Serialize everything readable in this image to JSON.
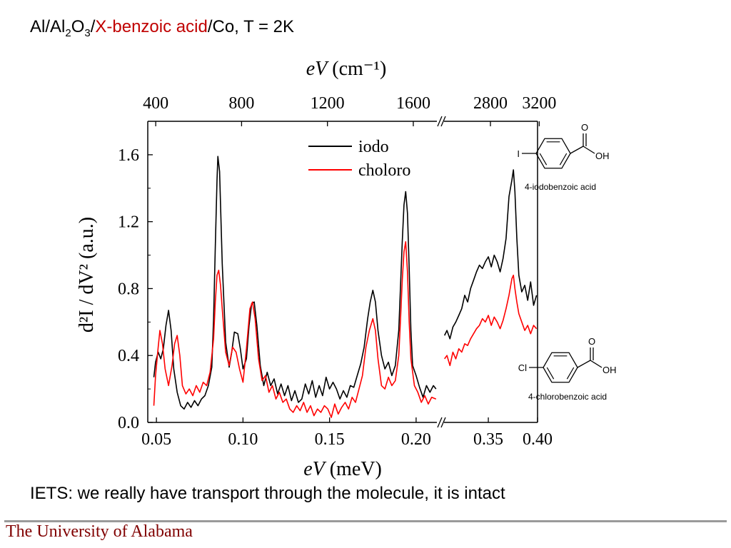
{
  "slide": {
    "title_prefix": "Al/Al",
    "title_sub1": "2",
    "title_mid": "O",
    "title_sub2": "3",
    "title_slash": "/",
    "title_red": "X-benzoic acid",
    "title_suffix": "/Co,  T = 2K",
    "caption": "IETS: we really have transport through the molecule, it is intact",
    "footer": "The University of Alabama",
    "accent_color": "#c00000",
    "footer_color": "#800000"
  },
  "chart_data": {
    "type": "line",
    "title": "",
    "xlabel_italic": "eV",
    "xlabel_rest": " (meV)",
    "ylabel": "d²I / dV² (a.u.)",
    "top_axis_label_italic": "eV",
    "top_axis_label_rest": " (cm⁻¹)",
    "ylim": [
      0.0,
      1.8
    ],
    "yticks": [
      "0.0",
      "0.4",
      "0.8",
      "1.2",
      "1.6"
    ],
    "left_segment": {
      "xlim": [
        0.045,
        0.212
      ],
      "xticks": [
        "0.05",
        "0.10",
        "0.15",
        "0.20"
      ]
    },
    "right_segment": {
      "xlim": [
        0.305,
        0.4
      ],
      "xticks": [
        "0.35",
        "0.40"
      ]
    },
    "top_ticks_left": [
      "400",
      "800",
      "1200",
      "1600"
    ],
    "top_ticks_right": [
      "2800",
      "3200"
    ],
    "legend_position": "top-center",
    "series": [
      {
        "name": "iodo",
        "color": "#000000",
        "left": [
          [
            0.0485,
            0.27
          ],
          [
            0.0495,
            0.36
          ],
          [
            0.051,
            0.42
          ],
          [
            0.0525,
            0.38
          ],
          [
            0.054,
            0.44
          ],
          [
            0.0555,
            0.58
          ],
          [
            0.057,
            0.67
          ],
          [
            0.0585,
            0.55
          ],
          [
            0.06,
            0.32
          ],
          [
            0.062,
            0.18
          ],
          [
            0.064,
            0.1
          ],
          [
            0.066,
            0.08
          ],
          [
            0.068,
            0.12
          ],
          [
            0.07,
            0.09
          ],
          [
            0.072,
            0.13
          ],
          [
            0.074,
            0.1
          ],
          [
            0.076,
            0.14
          ],
          [
            0.078,
            0.16
          ],
          [
            0.08,
            0.22
          ],
          [
            0.082,
            0.33
          ],
          [
            0.083,
            0.62
          ],
          [
            0.084,
            1.05
          ],
          [
            0.085,
            1.45
          ],
          [
            0.0855,
            1.59
          ],
          [
            0.0865,
            1.5
          ],
          [
            0.088,
            0.95
          ],
          [
            0.09,
            0.48
          ],
          [
            0.092,
            0.33
          ],
          [
            0.0935,
            0.42
          ],
          [
            0.095,
            0.54
          ],
          [
            0.097,
            0.53
          ],
          [
            0.0985,
            0.44
          ],
          [
            0.1,
            0.32
          ],
          [
            0.102,
            0.38
          ],
          [
            0.1035,
            0.58
          ],
          [
            0.105,
            0.71
          ],
          [
            0.1065,
            0.72
          ],
          [
            0.108,
            0.58
          ],
          [
            0.11,
            0.34
          ],
          [
            0.112,
            0.22
          ],
          [
            0.114,
            0.3
          ],
          [
            0.116,
            0.22
          ],
          [
            0.118,
            0.26
          ],
          [
            0.12,
            0.17
          ],
          [
            0.122,
            0.23
          ],
          [
            0.124,
            0.16
          ],
          [
            0.126,
            0.22
          ],
          [
            0.128,
            0.13
          ],
          [
            0.13,
            0.19
          ],
          [
            0.132,
            0.12
          ],
          [
            0.134,
            0.14
          ],
          [
            0.136,
            0.23
          ],
          [
            0.138,
            0.17
          ],
          [
            0.14,
            0.25
          ],
          [
            0.142,
            0.15
          ],
          [
            0.144,
            0.22
          ],
          [
            0.146,
            0.16
          ],
          [
            0.148,
            0.27
          ],
          [
            0.15,
            0.2
          ],
          [
            0.152,
            0.24
          ],
          [
            0.154,
            0.2
          ],
          [
            0.156,
            0.14
          ],
          [
            0.158,
            0.19
          ],
          [
            0.16,
            0.15
          ],
          [
            0.162,
            0.22
          ],
          [
            0.164,
            0.21
          ],
          [
            0.166,
            0.28
          ],
          [
            0.168,
            0.35
          ],
          [
            0.17,
            0.45
          ],
          [
            0.172,
            0.62
          ],
          [
            0.1735,
            0.72
          ],
          [
            0.175,
            0.79
          ],
          [
            0.1765,
            0.72
          ],
          [
            0.178,
            0.55
          ],
          [
            0.18,
            0.4
          ],
          [
            0.182,
            0.32
          ],
          [
            0.184,
            0.36
          ],
          [
            0.186,
            0.28
          ],
          [
            0.188,
            0.34
          ],
          [
            0.19,
            0.55
          ],
          [
            0.191,
            0.82
          ],
          [
            0.192,
            1.08
          ],
          [
            0.193,
            1.3
          ],
          [
            0.194,
            1.38
          ],
          [
            0.195,
            1.25
          ],
          [
            0.196,
            0.92
          ],
          [
            0.197,
            0.55
          ],
          [
            0.198,
            0.34
          ],
          [
            0.2,
            0.28
          ],
          [
            0.202,
            0.21
          ],
          [
            0.204,
            0.15
          ],
          [
            0.206,
            0.22
          ],
          [
            0.208,
            0.18
          ],
          [
            0.21,
            0.22
          ],
          [
            0.2115,
            0.2
          ]
        ],
        "right": [
          [
            0.3055,
            0.52
          ],
          [
            0.308,
            0.55
          ],
          [
            0.311,
            0.5
          ],
          [
            0.314,
            0.57
          ],
          [
            0.317,
            0.6
          ],
          [
            0.32,
            0.64
          ],
          [
            0.323,
            0.68
          ],
          [
            0.326,
            0.76
          ],
          [
            0.329,
            0.72
          ],
          [
            0.332,
            0.8
          ],
          [
            0.335,
            0.85
          ],
          [
            0.338,
            0.9
          ],
          [
            0.341,
            0.94
          ],
          [
            0.344,
            0.92
          ],
          [
            0.347,
            0.96
          ],
          [
            0.35,
            0.99
          ],
          [
            0.353,
            0.93
          ],
          [
            0.356,
            1.0
          ],
          [
            0.359,
            0.96
          ],
          [
            0.362,
            0.9
          ],
          [
            0.365,
            0.98
          ],
          [
            0.368,
            1.1
          ],
          [
            0.371,
            1.35
          ],
          [
            0.374,
            1.45
          ],
          [
            0.3755,
            1.51
          ],
          [
            0.377,
            1.38
          ],
          [
            0.379,
            1.1
          ],
          [
            0.381,
            0.88
          ],
          [
            0.384,
            0.78
          ],
          [
            0.387,
            0.82
          ],
          [
            0.39,
            0.73
          ],
          [
            0.393,
            0.84
          ],
          [
            0.396,
            0.7
          ],
          [
            0.399,
            0.76
          ]
        ]
      },
      {
        "name": "choloro",
        "color": "#ff0000",
        "left": [
          [
            0.0485,
            0.1
          ],
          [
            0.0495,
            0.28
          ],
          [
            0.051,
            0.45
          ],
          [
            0.052,
            0.55
          ],
          [
            0.0535,
            0.47
          ],
          [
            0.055,
            0.32
          ],
          [
            0.057,
            0.22
          ],
          [
            0.059,
            0.34
          ],
          [
            0.0605,
            0.47
          ],
          [
            0.062,
            0.52
          ],
          [
            0.0635,
            0.4
          ],
          [
            0.065,
            0.22
          ],
          [
            0.067,
            0.17
          ],
          [
            0.069,
            0.2
          ],
          [
            0.071,
            0.16
          ],
          [
            0.073,
            0.22
          ],
          [
            0.075,
            0.18
          ],
          [
            0.077,
            0.24
          ],
          [
            0.079,
            0.22
          ],
          [
            0.081,
            0.3
          ],
          [
            0.083,
            0.5
          ],
          [
            0.084,
            0.72
          ],
          [
            0.085,
            0.88
          ],
          [
            0.086,
            0.91
          ],
          [
            0.087,
            0.82
          ],
          [
            0.088,
            0.68
          ],
          [
            0.09,
            0.42
          ],
          [
            0.092,
            0.34
          ],
          [
            0.094,
            0.45
          ],
          [
            0.096,
            0.42
          ],
          [
            0.098,
            0.32
          ],
          [
            0.1,
            0.24
          ],
          [
            0.102,
            0.44
          ],
          [
            0.104,
            0.68
          ],
          [
            0.1055,
            0.72
          ],
          [
            0.107,
            0.62
          ],
          [
            0.109,
            0.38
          ],
          [
            0.111,
            0.25
          ],
          [
            0.113,
            0.28
          ],
          [
            0.115,
            0.18
          ],
          [
            0.117,
            0.22
          ],
          [
            0.119,
            0.14
          ],
          [
            0.121,
            0.18
          ],
          [
            0.123,
            0.12
          ],
          [
            0.125,
            0.14
          ],
          [
            0.127,
            0.08
          ],
          [
            0.129,
            0.06
          ],
          [
            0.131,
            0.1
          ],
          [
            0.133,
            0.07
          ],
          [
            0.135,
            0.12
          ],
          [
            0.137,
            0.06
          ],
          [
            0.139,
            0.1
          ],
          [
            0.141,
            0.04
          ],
          [
            0.143,
            0.08
          ],
          [
            0.145,
            0.06
          ],
          [
            0.147,
            0.1
          ],
          [
            0.149,
            0.08
          ],
          [
            0.151,
            0.03
          ],
          [
            0.153,
            0.11
          ],
          [
            0.155,
            0.05
          ],
          [
            0.157,
            0.09
          ],
          [
            0.159,
            0.12
          ],
          [
            0.161,
            0.08
          ],
          [
            0.163,
            0.15
          ],
          [
            0.165,
            0.12
          ],
          [
            0.167,
            0.2
          ],
          [
            0.169,
            0.28
          ],
          [
            0.171,
            0.45
          ],
          [
            0.173,
            0.55
          ],
          [
            0.175,
            0.62
          ],
          [
            0.1765,
            0.55
          ],
          [
            0.178,
            0.38
          ],
          [
            0.18,
            0.22
          ],
          [
            0.182,
            0.2
          ],
          [
            0.184,
            0.27
          ],
          [
            0.186,
            0.22
          ],
          [
            0.188,
            0.25
          ],
          [
            0.19,
            0.4
          ],
          [
            0.191,
            0.62
          ],
          [
            0.192,
            0.85
          ],
          [
            0.193,
            1.02
          ],
          [
            0.194,
            1.08
          ],
          [
            0.195,
            0.9
          ],
          [
            0.196,
            0.6
          ],
          [
            0.197,
            0.38
          ],
          [
            0.199,
            0.22
          ],
          [
            0.201,
            0.18
          ],
          [
            0.203,
            0.12
          ],
          [
            0.205,
            0.16
          ],
          [
            0.207,
            0.11
          ],
          [
            0.209,
            0.15
          ],
          [
            0.2115,
            0.14
          ]
        ],
        "right": [
          [
            0.3055,
            0.38
          ],
          [
            0.308,
            0.4
          ],
          [
            0.311,
            0.34
          ],
          [
            0.314,
            0.42
          ],
          [
            0.317,
            0.38
          ],
          [
            0.32,
            0.44
          ],
          [
            0.323,
            0.42
          ],
          [
            0.326,
            0.47
          ],
          [
            0.329,
            0.46
          ],
          [
            0.332,
            0.5
          ],
          [
            0.335,
            0.53
          ],
          [
            0.338,
            0.56
          ],
          [
            0.341,
            0.58
          ],
          [
            0.344,
            0.62
          ],
          [
            0.347,
            0.6
          ],
          [
            0.35,
            0.64
          ],
          [
            0.353,
            0.58
          ],
          [
            0.356,
            0.63
          ],
          [
            0.359,
            0.6
          ],
          [
            0.362,
            0.56
          ],
          [
            0.365,
            0.61
          ],
          [
            0.368,
            0.68
          ],
          [
            0.371,
            0.76
          ],
          [
            0.374,
            0.86
          ],
          [
            0.3755,
            0.88
          ],
          [
            0.377,
            0.8
          ],
          [
            0.379,
            0.72
          ],
          [
            0.381,
            0.65
          ],
          [
            0.384,
            0.6
          ],
          [
            0.387,
            0.55
          ],
          [
            0.39,
            0.58
          ],
          [
            0.393,
            0.53
          ],
          [
            0.396,
            0.58
          ],
          [
            0.399,
            0.56
          ]
        ]
      }
    ]
  },
  "molecules": [
    {
      "name": "4-iodobenzoic acid",
      "substituent": "I",
      "carbonyl_o": "O",
      "hydroxyl": "OH"
    },
    {
      "name": "4-chlorobenzoic acid",
      "substituent": "Cl",
      "carbonyl_o": "O",
      "hydroxyl": "OH"
    }
  ]
}
